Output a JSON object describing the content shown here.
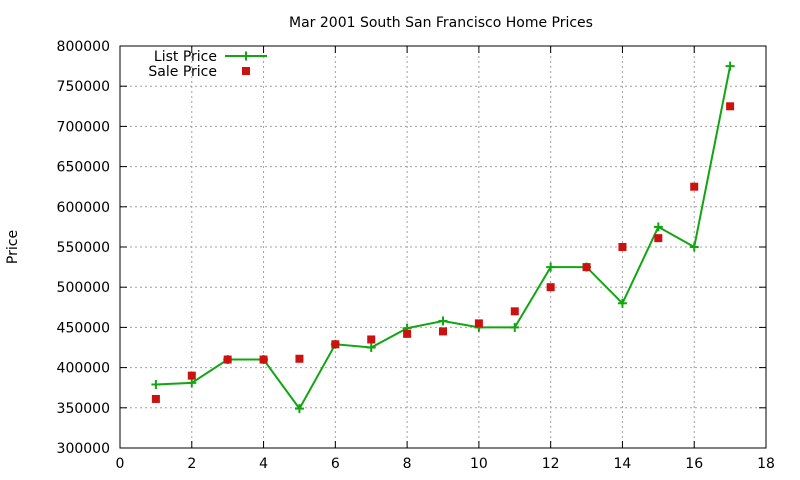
{
  "chart_data": {
    "type": "line",
    "title": "Mar 2001 South San Francisco Home Prices",
    "xlabel": "",
    "ylabel": "Price",
    "xlim": [
      0,
      18
    ],
    "ylim": [
      300000,
      800000
    ],
    "x_ticks": [
      0,
      2,
      4,
      6,
      8,
      10,
      12,
      14,
      16,
      18
    ],
    "y_ticks": [
      300000,
      350000,
      400000,
      450000,
      500000,
      550000,
      600000,
      650000,
      700000,
      750000,
      800000
    ],
    "grid": true,
    "legend_position": "top-left",
    "series": [
      {
        "name": "List Price",
        "style": "linespoints",
        "color": "#11a611",
        "x": [
          1,
          2,
          3,
          4,
          5,
          6,
          7,
          8,
          9,
          10,
          11,
          12,
          13,
          14,
          15,
          16,
          17
        ],
        "values": [
          379000,
          381000,
          410000,
          410000,
          349000,
          429000,
          425000,
          449000,
          458000,
          450000,
          450000,
          525000,
          525000,
          480000,
          575000,
          550000,
          775000
        ]
      },
      {
        "name": "Sale Price",
        "style": "points",
        "color": "#cc1111",
        "x": [
          1,
          2,
          3,
          4,
          5,
          6,
          7,
          8,
          9,
          10,
          11,
          12,
          13,
          14,
          15,
          16,
          17
        ],
        "values": [
          361000,
          390000,
          410000,
          410000,
          411000,
          429000,
          435000,
          442000,
          445000,
          455000,
          470000,
          500000,
          525000,
          550000,
          561000,
          625000,
          725000
        ]
      }
    ]
  }
}
